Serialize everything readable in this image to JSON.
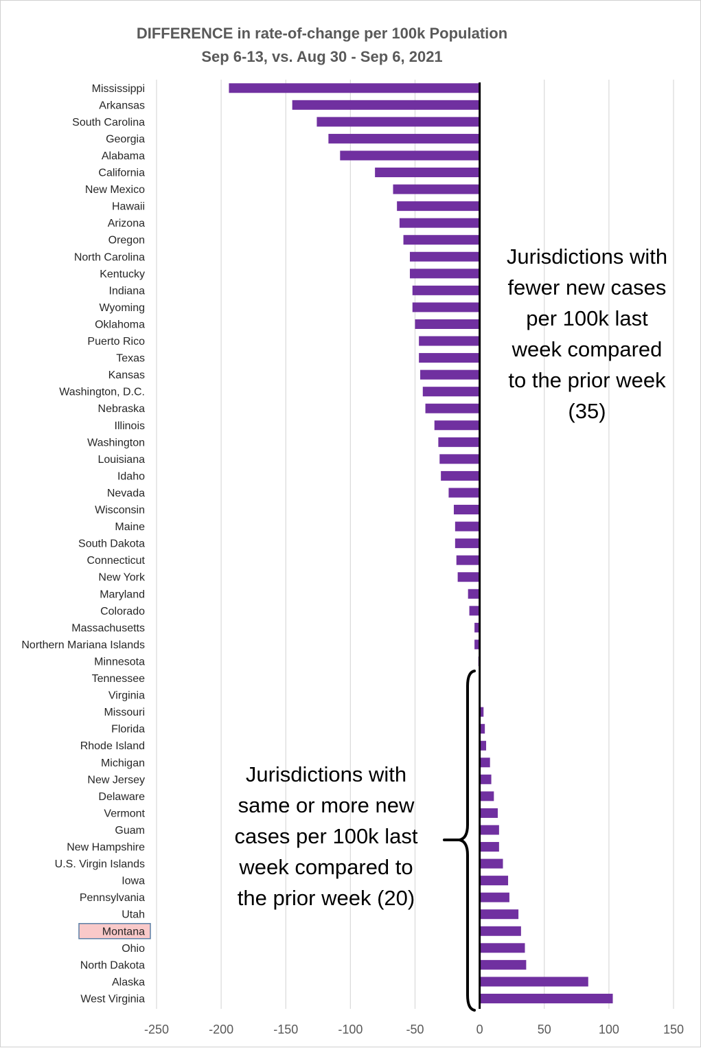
{
  "chart_data": {
    "type": "bar",
    "orientation": "horizontal",
    "title": [
      "DIFFERENCE in rate-of-change per 100k Population",
      "Sep 6-13, vs. Aug 30 - Sep 6, 2021"
    ],
    "xlabel": "",
    "ylabel": "",
    "xlim": [
      -250,
      150
    ],
    "xticks": [
      -250,
      -200,
      -150,
      -100,
      -50,
      0,
      50,
      100,
      150
    ],
    "grid": "vertical",
    "bar_color": "#7030a0",
    "highlight_color": "#f9c9c9",
    "highlight_border_color": "#5b7fa6",
    "highlighted_category": "Montana",
    "categories": [
      "Mississippi",
      "Arkansas",
      "South Carolina",
      "Georgia",
      "Alabama",
      "California",
      "New Mexico",
      "Hawaii",
      "Arizona",
      "Oregon",
      "North Carolina",
      "Kentucky",
      "Indiana",
      "Wyoming",
      "Oklahoma",
      "Puerto Rico",
      "Texas",
      "Kansas",
      "Washington, D.C.",
      "Nebraska",
      "Illinois",
      "Washington",
      "Louisiana",
      "Idaho",
      "Nevada",
      "Wisconsin",
      "Maine",
      "South Dakota",
      "Connecticut",
      "New York",
      "Maryland",
      "Colorado",
      "Massachusetts",
      "Northern Mariana Islands",
      "Minnesota",
      "Tennessee",
      "Virginia",
      "Missouri",
      "Florida",
      "Rhode Island",
      "Michigan",
      "New Jersey",
      "Delaware",
      "Vermont",
      "Guam",
      "New Hampshire",
      "U.S. Virgin Islands",
      "Iowa",
      "Pennsylvania",
      "Utah",
      "Montana",
      "Ohio",
      "North Dakota",
      "Alaska",
      "West Virginia"
    ],
    "values": [
      -194,
      -145,
      -126,
      -117,
      -108,
      -81,
      -67,
      -64,
      -62,
      -59,
      -54,
      -54,
      -52,
      -52,
      -50,
      -47,
      -47,
      -46,
      -44,
      -42,
      -35,
      -32,
      -31,
      -30,
      -24,
      -20,
      -19,
      -19,
      -18,
      -17,
      -9,
      -8,
      -4,
      -4,
      -1,
      0,
      0,
      3,
      4,
      5,
      8,
      9,
      11,
      14,
      15,
      15,
      18,
      22,
      23,
      30,
      32,
      35,
      36,
      84,
      103
    ],
    "annotations": [
      {
        "id": "fewer",
        "lines": [
          "Jurisdictions with",
          "fewer new cases",
          "per 100k last",
          "week compared",
          "to the prior week",
          "(35)"
        ]
      },
      {
        "id": "more",
        "lines": [
          "Jurisdictions with",
          "same or more new",
          "cases per 100k last",
          "week compared to",
          "the prior week (20)"
        ]
      }
    ]
  }
}
